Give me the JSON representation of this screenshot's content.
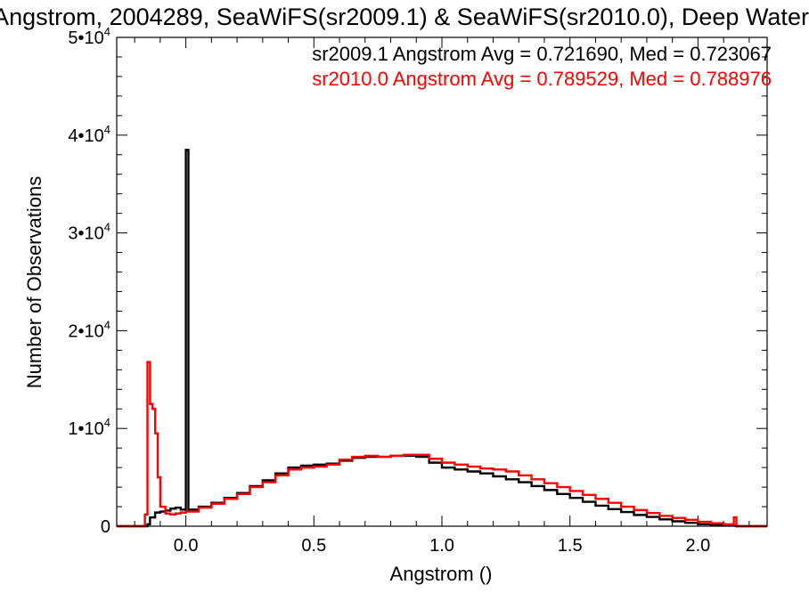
{
  "chart_data": {
    "type": "histogram-step",
    "title": "Angstrom, 2004289, SeaWiFS(sr2009.1) & SeaWiFS(sr2010.0), Deep Water",
    "xlabel": "Angstrom ()",
    "ylabel": "Number of Observations",
    "xlim": [
      -0.27,
      2.27
    ],
    "ylim": [
      0,
      50000
    ],
    "xticks": [
      {
        "value": 0.0,
        "label": "0.0"
      },
      {
        "value": 0.5,
        "label": "0.5"
      },
      {
        "value": 1.0,
        "label": "1.0"
      },
      {
        "value": 1.5,
        "label": "1.5"
      },
      {
        "value": 2.0,
        "label": "2.0"
      }
    ],
    "yticks": [
      {
        "value": 0,
        "label": "0",
        "exp": ""
      },
      {
        "value": 10000,
        "label": "1•10",
        "exp": "4"
      },
      {
        "value": 20000,
        "label": "2•10",
        "exp": "4"
      },
      {
        "value": 30000,
        "label": "3•10",
        "exp": "4"
      },
      {
        "value": 40000,
        "label": "4•10",
        "exp": "4"
      },
      {
        "value": 50000,
        "label": "5•10",
        "exp": "4"
      }
    ],
    "grid": false,
    "legend_position": "top-right",
    "series": [
      {
        "name": "sr2009.1",
        "color": "#000000",
        "legend": "sr2009.1 Angstrom Avg = 0.721690, Med = 0.723067",
        "x": [
          -0.27,
          -0.15,
          -0.14,
          -0.12,
          -0.1,
          -0.08,
          -0.06,
          -0.04,
          -0.02,
          0.0,
          0.01,
          0.05,
          0.1,
          0.15,
          0.2,
          0.25,
          0.3,
          0.35,
          0.4,
          0.45,
          0.5,
          0.55,
          0.6,
          0.65,
          0.7,
          0.75,
          0.8,
          0.85,
          0.9,
          0.95,
          1.0,
          1.05,
          1.1,
          1.15,
          1.2,
          1.25,
          1.3,
          1.35,
          1.4,
          1.45,
          1.5,
          1.55,
          1.6,
          1.65,
          1.7,
          1.75,
          1.8,
          1.85,
          1.9,
          1.95,
          2.0,
          2.05,
          2.1,
          2.15,
          2.27
        ],
        "y": [
          0,
          200,
          900,
          1400,
          1500,
          1600,
          1800,
          1900,
          1700,
          38500,
          1700,
          2000,
          2400,
          2900,
          3400,
          4100,
          4700,
          5400,
          6000,
          6200,
          6300,
          6400,
          6700,
          7000,
          7100,
          7100,
          7200,
          7200,
          7100,
          6500,
          6000,
          5800,
          5600,
          5400,
          5100,
          4800,
          4500,
          4100,
          3700,
          3300,
          2900,
          2500,
          2100,
          1750,
          1450,
          1150,
          950,
          700,
          500,
          350,
          200,
          120,
          60,
          0,
          0
        ]
      },
      {
        "name": "sr2010.0",
        "color": "#ff0000",
        "legend": "sr2010.0 Angstrom Avg = 0.789529, Med = 0.788976",
        "x": [
          -0.27,
          -0.16,
          -0.15,
          -0.14,
          -0.13,
          -0.12,
          -0.11,
          -0.1,
          -0.08,
          -0.06,
          -0.04,
          -0.02,
          0.0,
          0.05,
          0.1,
          0.15,
          0.2,
          0.25,
          0.3,
          0.35,
          0.4,
          0.45,
          0.5,
          0.55,
          0.6,
          0.65,
          0.7,
          0.75,
          0.8,
          0.85,
          0.9,
          0.95,
          1.0,
          1.05,
          1.1,
          1.15,
          1.2,
          1.25,
          1.3,
          1.35,
          1.4,
          1.45,
          1.5,
          1.55,
          1.6,
          1.65,
          1.7,
          1.75,
          1.8,
          1.85,
          1.9,
          1.95,
          2.0,
          2.05,
          2.1,
          2.14,
          2.15,
          2.27
        ],
        "y": [
          0,
          1200,
          16800,
          12500,
          12000,
          9500,
          5000,
          2000,
          1300,
          1200,
          1300,
          1400,
          1500,
          1900,
          2300,
          2800,
          3300,
          4000,
          4500,
          5200,
          5800,
          6000,
          6100,
          6300,
          6800,
          7100,
          7200,
          7100,
          7200,
          7300,
          7300,
          6900,
          6500,
          6300,
          6100,
          5900,
          5800,
          5600,
          5200,
          4800,
          4400,
          4000,
          3600,
          3200,
          2800,
          2400,
          2000,
          1650,
          1350,
          1050,
          850,
          650,
          450,
          300,
          200,
          900,
          0,
          0
        ]
      }
    ]
  }
}
